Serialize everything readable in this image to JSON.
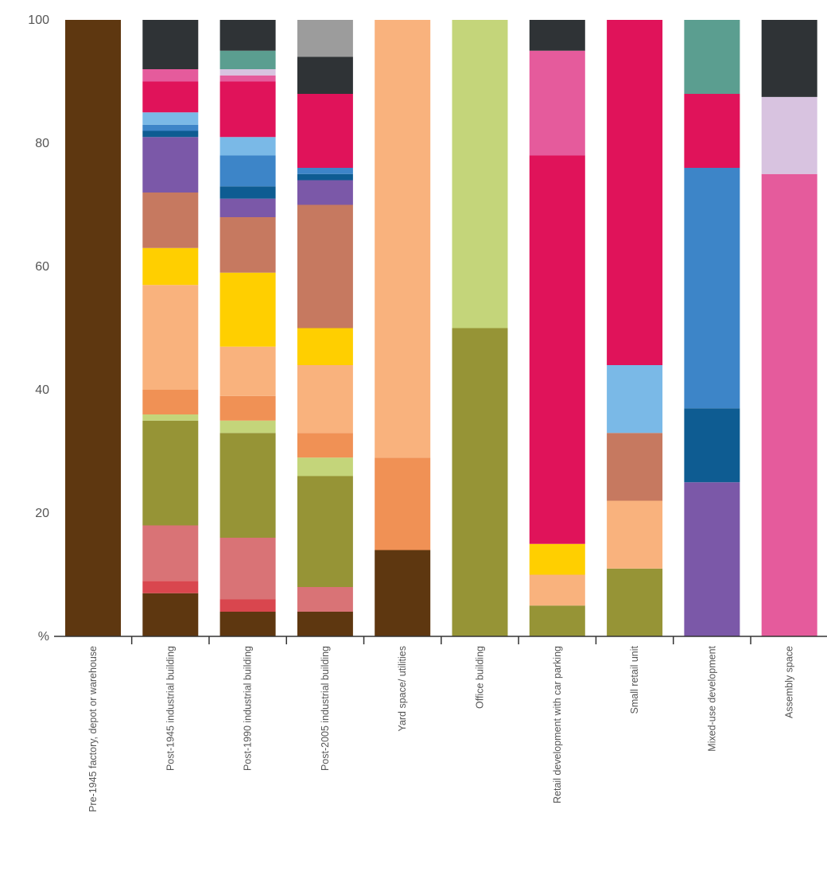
{
  "chart_data": {
    "type": "bar",
    "stacked": true,
    "orientation": "vertical",
    "title": "",
    "xlabel": "",
    "ylabel": "%",
    "ylim": [
      0,
      100
    ],
    "yticks": [
      20,
      40,
      60,
      80,
      100
    ],
    "y_zero_label": "%",
    "grid": false,
    "legend": "none",
    "categories": [
      "Pre-1945 factory, depot or warehouse",
      "Post-1945 industrial building",
      "Post-1990 industrial building",
      "Post-2005 industrial building",
      "Yard space/ utilities",
      "Office building",
      "Retail development with car parking",
      "Small retail unit",
      "Mixed-use development",
      "Assembly space"
    ],
    "segments": [
      [
        {
          "value": 100,
          "color": "#5e3710"
        }
      ],
      [
        {
          "value": 7,
          "color": "#5e3710"
        },
        {
          "value": 2,
          "color": "#d9464e"
        },
        {
          "value": 9,
          "color": "#d97376"
        },
        {
          "value": 17,
          "color": "#969436"
        },
        {
          "value": 1,
          "color": "#c4d57a"
        },
        {
          "value": 4,
          "color": "#f09155"
        },
        {
          "value": 17,
          "color": "#f9b27d"
        },
        {
          "value": 6,
          "color": "#ffcf00"
        },
        {
          "value": 9,
          "color": "#c67960"
        },
        {
          "value": 9,
          "color": "#7b58a8"
        },
        {
          "value": 1,
          "color": "#0e5c92"
        },
        {
          "value": 1,
          "color": "#3d85c8"
        },
        {
          "value": 2,
          "color": "#7ab9e7"
        },
        {
          "value": 5,
          "color": "#e0135a"
        },
        {
          "value": 2,
          "color": "#e55b9c"
        },
        {
          "value": 8,
          "color": "#2f3336"
        }
      ],
      [
        {
          "value": 4,
          "color": "#5e3710"
        },
        {
          "value": 2,
          "color": "#d9464e"
        },
        {
          "value": 10,
          "color": "#d97376"
        },
        {
          "value": 17,
          "color": "#969436"
        },
        {
          "value": 2,
          "color": "#c4d57a"
        },
        {
          "value": 4,
          "color": "#f09155"
        },
        {
          "value": 8,
          "color": "#f9b27d"
        },
        {
          "value": 12,
          "color": "#ffcf00"
        },
        {
          "value": 9,
          "color": "#c67960"
        },
        {
          "value": 3,
          "color": "#7b58a8"
        },
        {
          "value": 2,
          "color": "#0e5c92"
        },
        {
          "value": 5,
          "color": "#3d85c8"
        },
        {
          "value": 3,
          "color": "#7ab9e7"
        },
        {
          "value": 9,
          "color": "#e0135a"
        },
        {
          "value": 1,
          "color": "#e55b9c"
        },
        {
          "value": 1,
          "color": "#d8c3e0"
        },
        {
          "value": 3,
          "color": "#5b9e90"
        },
        {
          "value": 5,
          "color": "#2f3336"
        }
      ],
      [
        {
          "value": 4,
          "color": "#5e3710"
        },
        {
          "value": 4,
          "color": "#d97376"
        },
        {
          "value": 18,
          "color": "#969436"
        },
        {
          "value": 3,
          "color": "#c4d57a"
        },
        {
          "value": 4,
          "color": "#f09155"
        },
        {
          "value": 11,
          "color": "#f9b27d"
        },
        {
          "value": 6,
          "color": "#ffcf00"
        },
        {
          "value": 20,
          "color": "#c67960"
        },
        {
          "value": 4,
          "color": "#7b58a8"
        },
        {
          "value": 1,
          "color": "#0e5c92"
        },
        {
          "value": 1,
          "color": "#3d85c8"
        },
        {
          "value": 12,
          "color": "#e0135a"
        },
        {
          "value": 6,
          "color": "#2f3336"
        },
        {
          "value": 6,
          "color": "#9c9c9c"
        }
      ],
      [
        {
          "value": 14,
          "color": "#5e3710"
        },
        {
          "value": 15,
          "color": "#f09155"
        },
        {
          "value": 71,
          "color": "#f9b27d"
        }
      ],
      [
        {
          "value": 50,
          "color": "#969436"
        },
        {
          "value": 50,
          "color": "#c4d57a"
        }
      ],
      [
        {
          "value": 5,
          "color": "#969436"
        },
        {
          "value": 5,
          "color": "#f9b27d"
        },
        {
          "value": 5,
          "color": "#ffcf00"
        },
        {
          "value": 63,
          "color": "#e0135a"
        },
        {
          "value": 17,
          "color": "#e55b9c"
        },
        {
          "value": 5,
          "color": "#2f3336"
        }
      ],
      [
        {
          "value": 11,
          "color": "#969436"
        },
        {
          "value": 11,
          "color": "#f9b27d"
        },
        {
          "value": 11,
          "color": "#c67960"
        },
        {
          "value": 11,
          "color": "#7ab9e7"
        },
        {
          "value": 56,
          "color": "#e0135a"
        }
      ],
      [
        {
          "value": 25,
          "color": "#7b58a8"
        },
        {
          "value": 12,
          "color": "#0e5c92"
        },
        {
          "value": 39,
          "color": "#3d85c8"
        },
        {
          "value": 12,
          "color": "#e0135a"
        },
        {
          "value": 12,
          "color": "#5b9e90"
        }
      ],
      [
        {
          "value": 75,
          "color": "#e55b9c"
        },
        {
          "value": 12.5,
          "color": "#d8c3e0"
        },
        {
          "value": 12.5,
          "color": "#2f3336"
        }
      ]
    ]
  }
}
